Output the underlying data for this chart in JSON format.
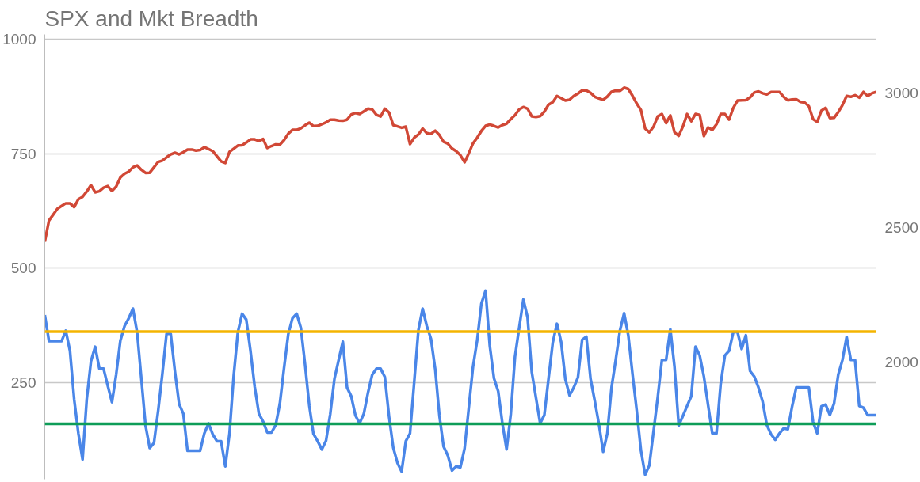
{
  "chart_data": {
    "type": "line",
    "title": "SPX and Mkt Breadth",
    "ylim": [
      40,
      1010
    ],
    "yticks": [
      250,
      500,
      750,
      1000
    ],
    "y2lim": [
      1563,
      3217
    ],
    "y2ticks": [
      2000,
      2500,
      3000
    ],
    "grid": "y",
    "tick_labels": "y",
    "categories": [
      null,
      null,
      null,
      null,
      null,
      null,
      null,
      null,
      null,
      null,
      null,
      null,
      null,
      null,
      null,
      null,
      null,
      null,
      null,
      null,
      null,
      null,
      null,
      null,
      null,
      null,
      null,
      null,
      null,
      null,
      null,
      null,
      null,
      null,
      null,
      null,
      null,
      null,
      null,
      null,
      null,
      null,
      null,
      null,
      null,
      null,
      null,
      null,
      null,
      null,
      null,
      null,
      null,
      null,
      null,
      null,
      null,
      null,
      null,
      null,
      null,
      null,
      null,
      null,
      null,
      null,
      null,
      null,
      null,
      null,
      null,
      null,
      null,
      null,
      null,
      null,
      null,
      null,
      null,
      null,
      null,
      null,
      null,
      null,
      null,
      null,
      null,
      null,
      null,
      null,
      null,
      null,
      null,
      null,
      null,
      null,
      null,
      null,
      null,
      null,
      null,
      null,
      null,
      null,
      null,
      null,
      null,
      null,
      null,
      null,
      null,
      null,
      null,
      null,
      null,
      null,
      null,
      null,
      null,
      null,
      null,
      null,
      null,
      null,
      null,
      null,
      null,
      null,
      null,
      null,
      null,
      null,
      null,
      null,
      null,
      null,
      null,
      null,
      null,
      null,
      null,
      null,
      null,
      null,
      null,
      null,
      null,
      null,
      null,
      null,
      null,
      null,
      null,
      null,
      null,
      null,
      null,
      null,
      null,
      null,
      null,
      null,
      null,
      null,
      null,
      null,
      null,
      null,
      null,
      null,
      null,
      null,
      null,
      null,
      null,
      null,
      null,
      null,
      null,
      null,
      null,
      null,
      null,
      null,
      null,
      null,
      null,
      null,
      null,
      null,
      null,
      null,
      null,
      null,
      null,
      null,
      null,
      null,
      null
    ],
    "series": [
      {
        "color": "#4a86e8",
        "values": [
          398,
          341,
          341,
          341,
          341,
          364,
          320,
          214,
          140,
          83,
          215,
          297,
          329,
          281,
          281,
          244,
          208,
          268,
          342,
          374,
          391,
          412,
          360,
          259,
          157,
          108,
          119,
          189,
          269,
          357,
          357,
          275,
          204,
          183,
          102,
          102,
          102,
          102,
          140,
          162,
          138,
          123,
          123,
          68,
          140,
          266,
          361,
          401,
          388,
          320,
          242,
          183,
          166,
          142,
          142,
          158,
          205,
          283,
          356,
          391,
          401,
          370,
          290,
          201,
          139,
          123,
          105,
          124,
          182,
          259,
          300,
          340,
          240,
          221,
          179,
          162,
          183,
          229,
          268,
          281,
          281,
          263,
          177,
          109,
          76,
          57,
          123,
          140,
          252,
          365,
          412,
          374,
          346,
          280,
          179,
          111,
          92,
          59,
          68,
          66,
          107,
          196,
          285,
          343,
          423,
          451,
          331,
          260,
          232,
          162,
          105,
          182,
          307,
          370,
          432,
          393,
          274,
          218,
          162,
          180,
          260,
          338,
          379,
          339,
          258,
          223,
          240,
          262,
          344,
          351,
          259,
          211,
          160,
          100,
          140,
          240,
          300,
          364,
          402,
          353,
          269,
          190,
          103,
          50,
          70,
          144,
          218,
          300,
          300,
          367,
          285,
          157,
          178,
          200,
          221,
          329,
          310,
          264,
          202,
          140,
          140,
          248,
          310,
          320,
          361,
          361,
          324,
          354,
          276,
          264,
          240,
          209,
          158,
          138,
          126,
          140,
          151,
          149,
          198,
          240,
          240,
          240,
          240,
          165,
          140,
          199,
          203,
          180,
          205,
          268,
          300,
          350,
          300,
          300,
          200,
          196,
          180,
          180,
          180
        ]
      },
      {
        "color": "#d14836",
        "axis": "y2",
        "values": [
          2446,
          2525,
          2547,
          2569,
          2579,
          2589,
          2589,
          2575,
          2604,
          2613,
          2633,
          2657,
          2630,
          2634,
          2647,
          2653,
          2635,
          2651,
          2685,
          2699,
          2707,
          2723,
          2730,
          2714,
          2702,
          2703,
          2723,
          2743,
          2748,
          2760,
          2771,
          2777,
          2771,
          2779,
          2789,
          2789,
          2785,
          2787,
          2798,
          2791,
          2783,
          2764,
          2745,
          2739,
          2780,
          2792,
          2804,
          2805,
          2815,
          2827,
          2827,
          2821,
          2828,
          2795,
          2802,
          2808,
          2807,
          2824,
          2848,
          2862,
          2862,
          2868,
          2879,
          2889,
          2876,
          2877,
          2883,
          2890,
          2900,
          2900,
          2897,
          2896,
          2900,
          2919,
          2925,
          2921,
          2931,
          2941,
          2938,
          2918,
          2912,
          2941,
          2927,
          2880,
          2875,
          2870,
          2874,
          2809,
          2833,
          2845,
          2867,
          2850,
          2847,
          2859,
          2843,
          2818,
          2811,
          2793,
          2783,
          2768,
          2742,
          2775,
          2812,
          2833,
          2858,
          2877,
          2882,
          2877,
          2871,
          2880,
          2885,
          2902,
          2917,
          2938,
          2947,
          2941,
          2912,
          2910,
          2913,
          2930,
          2956,
          2965,
          2988,
          2980,
          2971,
          2974,
          2988,
          2997,
          3009,
          3009,
          3000,
          2985,
          2979,
          2974,
          2986,
          3004,
          3008,
          3007,
          3019,
          3014,
          2989,
          2960,
          2936,
          2867,
          2853,
          2874,
          2912,
          2921,
          2887,
          2916,
          2853,
          2840,
          2875,
          2921,
          2894,
          2921,
          2918,
          2839,
          2871,
          2862,
          2883,
          2921,
          2921,
          2900,
          2944,
          2971,
          2972,
          2973,
          2983,
          3001,
          3005,
          2998,
          2994,
          3003,
          3003,
          3003,
          2985,
          2972,
          2975,
          2976,
          2966,
          2964,
          2950,
          2902,
          2892,
          2934,
          2944,
          2906,
          2907,
          2928,
          2954,
          2988,
          2985,
          2991,
          2982,
          3003,
          2988,
          2998,
          3003
        ]
      }
    ],
    "ref_lines": [
      {
        "axis": "y",
        "value": 362,
        "color": "#f4b400"
      },
      {
        "axis": "y",
        "value": 161,
        "color": "#0f9d58"
      }
    ]
  }
}
